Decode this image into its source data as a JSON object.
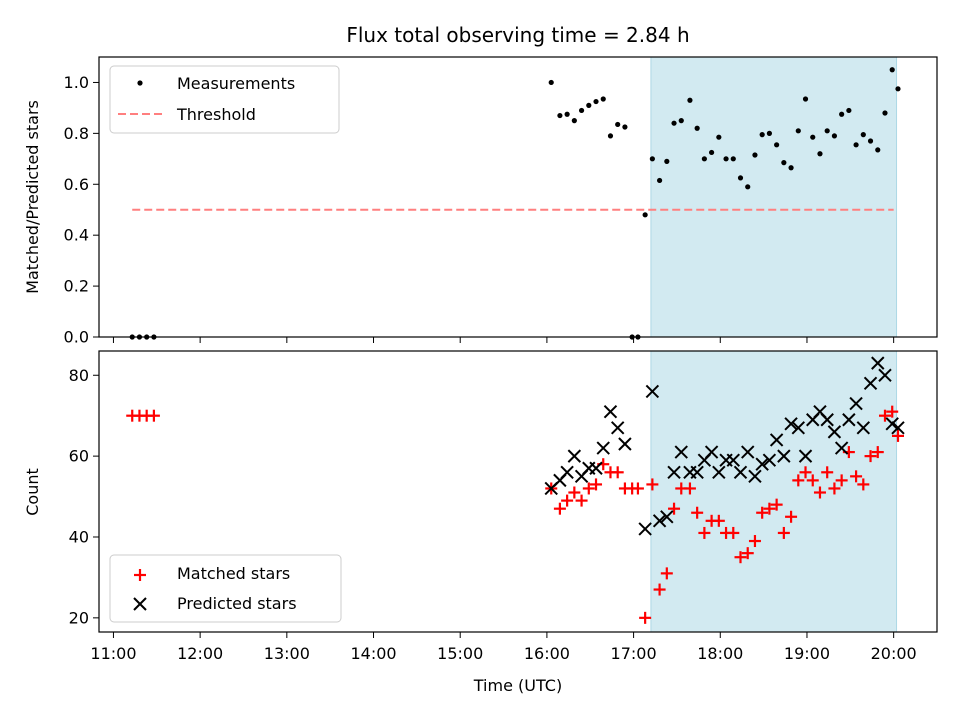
{
  "title": "Flux total observing time = 2.84 h",
  "shaded_region_color": "#add8e6",
  "chart_data": [
    {
      "type": "scatter",
      "panel": "top",
      "ylabel": "Matched/Predicted stars",
      "xlim": [
        "10:50",
        "20:30"
      ],
      "ylim": [
        0,
        1.1
      ],
      "yticks": [
        0.0,
        0.2,
        0.4,
        0.6,
        0.8,
        1.0
      ],
      "ytick_labels": [
        "0.0",
        "0.2",
        "0.4",
        "0.6",
        "0.8",
        "1.0"
      ],
      "legend_position": "upper left",
      "shaded_x": [
        "17:12",
        "20:02"
      ],
      "series": [
        {
          "name": "Measurements",
          "marker": "dot",
          "color": "#000000",
          "points": [
            [
              "11:13",
              0
            ],
            [
              "11:18",
              0
            ],
            [
              "11:23",
              0
            ],
            [
              "11:28",
              0
            ],
            [
              "16:03",
              1.0
            ],
            [
              "16:09",
              0.87
            ],
            [
              "16:14",
              0.875
            ],
            [
              "16:19",
              0.85
            ],
            [
              "16:24",
              0.89
            ],
            [
              "16:29",
              0.91
            ],
            [
              "16:34",
              0.925
            ],
            [
              "16:39",
              0.935
            ],
            [
              "16:44",
              0.79
            ],
            [
              "16:49",
              0.835
            ],
            [
              "16:54",
              0.825
            ],
            [
              "16:59",
              0
            ],
            [
              "17:03",
              0
            ],
            [
              "17:08",
              0.48
            ],
            [
              "17:13",
              0.7
            ],
            [
              "17:18",
              0.615
            ],
            [
              "17:23",
              0.69
            ],
            [
              "17:28",
              0.84
            ],
            [
              "17:33",
              0.85
            ],
            [
              "17:39",
              0.93
            ],
            [
              "17:44",
              0.82
            ],
            [
              "17:49",
              0.7
            ],
            [
              "17:54",
              0.725
            ],
            [
              "17:59",
              0.785
            ],
            [
              "18:04",
              0.7
            ],
            [
              "18:09",
              0.7
            ],
            [
              "18:14",
              0.625
            ],
            [
              "18:19",
              0.59
            ],
            [
              "18:24",
              0.715
            ],
            [
              "18:29",
              0.795
            ],
            [
              "18:34",
              0.8
            ],
            [
              "18:39",
              0.755
            ],
            [
              "18:44",
              0.685
            ],
            [
              "18:49",
              0.665
            ],
            [
              "18:54",
              0.81
            ],
            [
              "18:59",
              0.935
            ],
            [
              "19:04",
              0.785
            ],
            [
              "19:09",
              0.72
            ],
            [
              "19:14",
              0.81
            ],
            [
              "19:19",
              0.79
            ],
            [
              "19:24",
              0.875
            ],
            [
              "19:29",
              0.89
            ],
            [
              "19:34",
              0.755
            ],
            [
              "19:39",
              0.795
            ],
            [
              "19:44",
              0.77
            ],
            [
              "19:49",
              0.735
            ],
            [
              "19:54",
              0.88
            ],
            [
              "19:59",
              1.05
            ],
            [
              "20:03",
              0.975
            ]
          ]
        },
        {
          "name": "Threshold",
          "marker": "dashed-line",
          "color": "#ff7f7f",
          "points": [
            [
              "11:13",
              0.5
            ],
            [
              "20:00",
              0.5
            ]
          ]
        }
      ]
    },
    {
      "type": "scatter",
      "panel": "bottom",
      "xlabel": "Time (UTC)",
      "ylabel": "Count",
      "xlim": [
        "10:50",
        "20:30"
      ],
      "ylim": [
        16.5,
        86
      ],
      "yticks": [
        20,
        40,
        60,
        80
      ],
      "ytick_labels": [
        "20",
        "40",
        "60",
        "80"
      ],
      "xticks": [
        "11:00",
        "12:00",
        "13:00",
        "14:00",
        "15:00",
        "16:00",
        "17:00",
        "18:00",
        "19:00",
        "20:00"
      ],
      "xtick_labels": [
        "11:00",
        "12:00",
        "13:00",
        "14:00",
        "15:00",
        "16:00",
        "17:00",
        "18:00",
        "19:00",
        "20:00"
      ],
      "legend_position": "lower left",
      "shaded_x": [
        "17:12",
        "20:02"
      ],
      "series": [
        {
          "name": "Matched stars",
          "marker": "plus",
          "color": "#ff0000",
          "points": [
            [
              "11:13",
              70
            ],
            [
              "11:18",
              70
            ],
            [
              "11:23",
              70
            ],
            [
              "11:28",
              70
            ],
            [
              "16:03",
              52
            ],
            [
              "16:09",
              47
            ],
            [
              "16:14",
              49
            ],
            [
              "16:19",
              51
            ],
            [
              "16:24",
              49
            ],
            [
              "16:29",
              52
            ],
            [
              "16:34",
              53
            ],
            [
              "16:39",
              58
            ],
            [
              "16:44",
              56
            ],
            [
              "16:49",
              56
            ],
            [
              "16:54",
              52
            ],
            [
              "16:59",
              52
            ],
            [
              "17:03",
              52
            ],
            [
              "17:08",
              20
            ],
            [
              "17:13",
              53
            ],
            [
              "17:18",
              27
            ],
            [
              "17:23",
              31
            ],
            [
              "17:28",
              47
            ],
            [
              "17:33",
              52
            ],
            [
              "17:39",
              52
            ],
            [
              "17:44",
              46
            ],
            [
              "17:49",
              41
            ],
            [
              "17:54",
              44
            ],
            [
              "17:59",
              44
            ],
            [
              "18:04",
              41
            ],
            [
              "18:09",
              41
            ],
            [
              "18:14",
              35
            ],
            [
              "18:19",
              36
            ],
            [
              "18:24",
              39
            ],
            [
              "18:29",
              46
            ],
            [
              "18:34",
              47
            ],
            [
              "18:39",
              48
            ],
            [
              "18:44",
              41
            ],
            [
              "18:49",
              45
            ],
            [
              "18:54",
              54
            ],
            [
              "18:59",
              56
            ],
            [
              "19:04",
              54
            ],
            [
              "19:09",
              51
            ],
            [
              "19:14",
              56
            ],
            [
              "19:19",
              52
            ],
            [
              "19:24",
              54
            ],
            [
              "19:29",
              61
            ],
            [
              "19:34",
              55
            ],
            [
              "19:39",
              53
            ],
            [
              "19:44",
              60
            ],
            [
              "19:49",
              61
            ],
            [
              "19:54",
              70
            ],
            [
              "19:59",
              71
            ],
            [
              "20:03",
              65
            ]
          ]
        },
        {
          "name": "Predicted stars",
          "marker": "x",
          "color": "#000000",
          "points": [
            [
              "16:03",
              52
            ],
            [
              "16:09",
              54
            ],
            [
              "16:14",
              56
            ],
            [
              "16:19",
              60
            ],
            [
              "16:24",
              55
            ],
            [
              "16:29",
              57
            ],
            [
              "16:34",
              57
            ],
            [
              "16:39",
              62
            ],
            [
              "16:44",
              71
            ],
            [
              "16:49",
              67
            ],
            [
              "16:54",
              63
            ],
            [
              "17:08",
              42
            ],
            [
              "17:13",
              76
            ],
            [
              "17:18",
              44
            ],
            [
              "17:23",
              45
            ],
            [
              "17:28",
              56
            ],
            [
              "17:33",
              61
            ],
            [
              "17:39",
              56
            ],
            [
              "17:44",
              56
            ],
            [
              "17:49",
              59
            ],
            [
              "17:54",
              61
            ],
            [
              "17:59",
              56
            ],
            [
              "18:04",
              59
            ],
            [
              "18:09",
              59
            ],
            [
              "18:14",
              56
            ],
            [
              "18:19",
              61
            ],
            [
              "18:24",
              55
            ],
            [
              "18:29",
              58
            ],
            [
              "18:34",
              59
            ],
            [
              "18:39",
              64
            ],
            [
              "18:44",
              60
            ],
            [
              "18:49",
              68
            ],
            [
              "18:54",
              67
            ],
            [
              "18:59",
              60
            ],
            [
              "19:04",
              69
            ],
            [
              "19:09",
              71
            ],
            [
              "19:14",
              69
            ],
            [
              "19:19",
              66
            ],
            [
              "19:24",
              62
            ],
            [
              "19:29",
              69
            ],
            [
              "19:34",
              73
            ],
            [
              "19:39",
              67
            ],
            [
              "19:44",
              78
            ],
            [
              "19:49",
              83
            ],
            [
              "19:54",
              80
            ],
            [
              "19:59",
              68
            ],
            [
              "20:03",
              67
            ]
          ]
        }
      ]
    }
  ]
}
